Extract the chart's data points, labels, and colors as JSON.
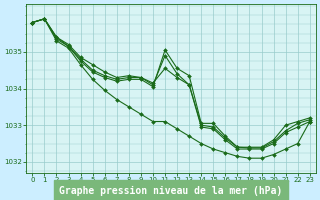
{
  "title": "Graphe pression niveau de la mer (hPa)",
  "background_color": "#cceeff",
  "plot_bg_color": "#d8f4f4",
  "line_color": "#1a6b1a",
  "grid_color": "#99cccc",
  "x_values": [
    0,
    1,
    2,
    3,
    4,
    5,
    6,
    7,
    8,
    9,
    10,
    11,
    12,
    13,
    14,
    15,
    16,
    17,
    18,
    19,
    20,
    21,
    22,
    23
  ],
  "series": [
    [
      1035.8,
      1035.9,
      1035.4,
      1035.2,
      1034.85,
      1034.65,
      1034.45,
      1034.3,
      1034.35,
      1034.3,
      1034.15,
      1034.55,
      1034.3,
      1034.1,
      1033.0,
      1032.95,
      1032.65,
      1032.4,
      1032.38,
      1032.38,
      1032.55,
      1032.85,
      1033.05,
      1033.15
    ],
    [
      1035.8,
      1035.9,
      1035.4,
      1035.15,
      1034.8,
      1034.5,
      1034.35,
      1034.25,
      1034.3,
      1034.3,
      1034.1,
      1034.9,
      1034.4,
      1034.1,
      1032.95,
      1032.9,
      1032.6,
      1032.35,
      1032.35,
      1032.35,
      1032.5,
      1032.8,
      1032.95,
      1033.1
    ],
    [
      1035.8,
      1035.9,
      1035.35,
      1035.15,
      1034.75,
      1034.45,
      1034.3,
      1034.2,
      1034.25,
      1034.25,
      1034.05,
      1035.05,
      1034.55,
      1034.35,
      1033.05,
      1033.05,
      1032.7,
      1032.4,
      1032.4,
      1032.4,
      1032.6,
      1033.0,
      1033.1,
      1033.2
    ],
    [
      1035.8,
      1035.9,
      1035.3,
      1035.1,
      1034.65,
      1034.25,
      1033.95,
      1033.7,
      1033.5,
      1033.3,
      1033.1,
      1033.1,
      1032.9,
      1032.7,
      1032.5,
      1032.35,
      1032.25,
      1032.15,
      1032.1,
      1032.1,
      1032.2,
      1032.35,
      1032.5,
      1033.1
    ]
  ],
  "ylim": [
    1031.7,
    1036.3
  ],
  "yticks": [
    1032,
    1033,
    1034,
    1035
  ],
  "xlim": [
    -0.5,
    23.5
  ],
  "marker": "D",
  "markersize": 2.0,
  "linewidth": 0.8,
  "title_fontsize": 7.0,
  "tick_fontsize": 5.0,
  "title_color": "#1a6b1a",
  "title_bg": "#7ab87a"
}
